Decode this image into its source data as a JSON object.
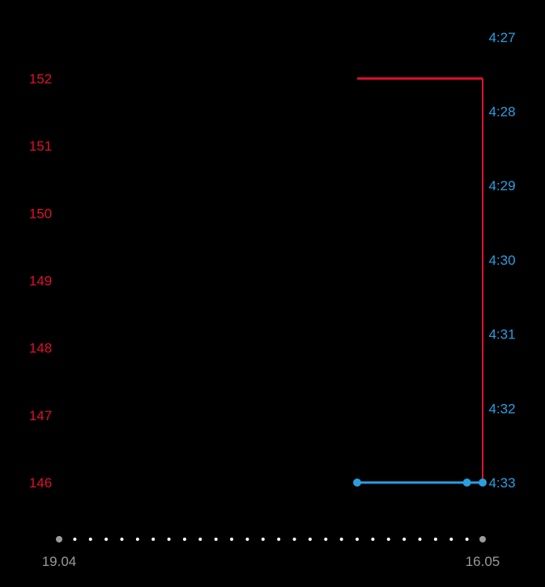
{
  "colors": {
    "background": "#000000",
    "weight_series": "#E0102E",
    "time_series": "#2A9EE0",
    "date_axis": "#9A9A9A",
    "dot_track": "#FFFFFF"
  },
  "chart_data": {
    "type": "line",
    "grid": false,
    "left_axis": {
      "ticks": [
        "146",
        "147",
        "148",
        "149",
        "150",
        "151",
        "152"
      ],
      "range": [
        146,
        152
      ],
      "color": "#E0102E"
    },
    "right_axis": {
      "ticks": [
        "4:27",
        "4:28",
        "4:29",
        "4:30",
        "4:31",
        "4:32",
        "4:33"
      ],
      "range_minutes": [
        267,
        273
      ],
      "inverted": true,
      "color": "#2A9EE0"
    },
    "x_axis": {
      "start_label": "19.04",
      "end_label": "16.05",
      "start": "2024-04-19",
      "end": "2024-05-16",
      "days": [
        "19.04",
        "20.04",
        "21.04",
        "22.04",
        "23.04",
        "24.04",
        "25.04",
        "26.04",
        "27.04",
        "28.04",
        "29.04",
        "30.04",
        "01.05",
        "02.05",
        "03.05",
        "04.05",
        "05.05",
        "06.05",
        "07.05",
        "08.05",
        "09.05",
        "10.05",
        "11.05",
        "12.05",
        "13.05",
        "14.05",
        "15.05",
        "16.05"
      ]
    },
    "series": [
      {
        "axis": "left",
        "color": "#E0102E",
        "step": true,
        "points": [
          {
            "x": "2024-05-08",
            "y": 152
          },
          {
            "x": "2024-05-16",
            "y": 152
          },
          {
            "x": "2024-05-16",
            "y": 146
          }
        ]
      },
      {
        "axis": "right",
        "color": "#2A9EE0",
        "markers": true,
        "points": [
          {
            "x": "2024-05-08",
            "y": "4:33"
          },
          {
            "x": "2024-05-15",
            "y": "4:33"
          },
          {
            "x": "2024-05-16",
            "y": "4:33"
          }
        ]
      }
    ]
  }
}
